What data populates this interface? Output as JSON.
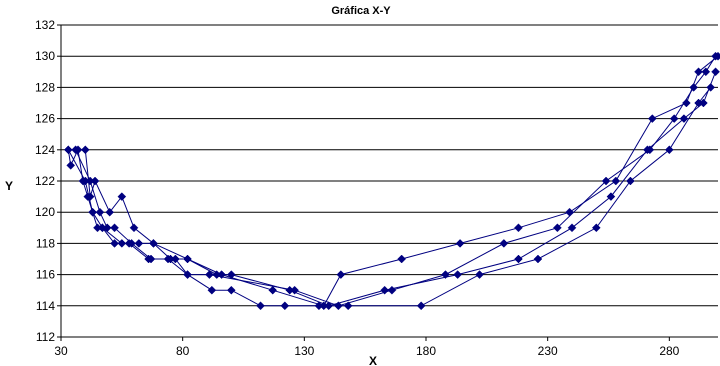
{
  "chart_data": {
    "type": "scatter",
    "title": "Gráfica X-Y",
    "xlabel": "X",
    "ylabel": "Y",
    "xlim": [
      30,
      300
    ],
    "ylim": [
      112,
      132
    ],
    "x_ticks": [
      "30",
      "80",
      "130",
      "180",
      "230",
      "280"
    ],
    "y_ticks": [
      "112",
      "114",
      "116",
      "118",
      "120",
      "122",
      "124",
      "126",
      "128",
      "130",
      "132"
    ],
    "grid": "horizontal",
    "legend": "none",
    "series_color": "#000080",
    "series": [
      {
        "values": [
          [
            33,
            124
          ],
          [
            34,
            123
          ],
          [
            37,
            124
          ],
          [
            39,
            122
          ],
          [
            41,
            121
          ],
          [
            43,
            120
          ],
          [
            45,
            119
          ],
          [
            47,
            119
          ],
          [
            52,
            118
          ],
          [
            58,
            118
          ],
          [
            66,
            117
          ],
          [
            74,
            117
          ],
          [
            82,
            116
          ],
          [
            92,
            115
          ],
          [
            100,
            115
          ],
          [
            112,
            114
          ],
          [
            122,
            114
          ],
          [
            136,
            114
          ],
          [
            148,
            114
          ],
          [
            178,
            114
          ],
          [
            202,
            116
          ],
          [
            226,
            117
          ],
          [
            250,
            119
          ],
          [
            264,
            122
          ],
          [
            280,
            124
          ],
          [
            292,
            127
          ],
          [
            297,
            128
          ]
        ]
      },
      {
        "values": [
          [
            33,
            124
          ],
          [
            40,
            122
          ],
          [
            43,
            120
          ],
          [
            47,
            119
          ],
          [
            55,
            118
          ],
          [
            62,
            118
          ],
          [
            68,
            118
          ],
          [
            75,
            117
          ],
          [
            82,
            117
          ],
          [
            94,
            116
          ],
          [
            100,
            116
          ],
          [
            124,
            115
          ],
          [
            140,
            114
          ],
          [
            163,
            115
          ],
          [
            193,
            116
          ],
          [
            218,
            117
          ],
          [
            240,
            119
          ],
          [
            256,
            121
          ],
          [
            271,
            124
          ],
          [
            286,
            126
          ],
          [
            294,
            127
          ],
          [
            299,
            129
          ]
        ]
      },
      {
        "values": [
          [
            36,
            124
          ],
          [
            42,
            122
          ],
          [
            46,
            120
          ],
          [
            49,
            119
          ],
          [
            52,
            119
          ],
          [
            59,
            118
          ],
          [
            67,
            117
          ],
          [
            77,
            117
          ],
          [
            82,
            116
          ],
          [
            91,
            116
          ],
          [
            126,
            115
          ],
          [
            144,
            114
          ],
          [
            166,
            115
          ],
          [
            188,
            116
          ],
          [
            212,
            118
          ],
          [
            234,
            119
          ],
          [
            254,
            122
          ],
          [
            272,
            124
          ],
          [
            282,
            126
          ],
          [
            290,
            128
          ],
          [
            295,
            129
          ],
          [
            299,
            130
          ]
        ]
      },
      {
        "values": [
          [
            40,
            124
          ],
          [
            42,
            121
          ],
          [
            44,
            122
          ],
          [
            50,
            120
          ],
          [
            55,
            121
          ],
          [
            60,
            119
          ],
          [
            68,
            118
          ],
          [
            82,
            117
          ],
          [
            96,
            116
          ],
          [
            117,
            115
          ],
          [
            138,
            114
          ],
          [
            145,
            116
          ],
          [
            170,
            117
          ],
          [
            194,
            118
          ],
          [
            218,
            119
          ],
          [
            239,
            120
          ],
          [
            258,
            122
          ],
          [
            273,
            126
          ],
          [
            287,
            127
          ],
          [
            292,
            129
          ],
          [
            300,
            130
          ]
        ]
      }
    ]
  }
}
